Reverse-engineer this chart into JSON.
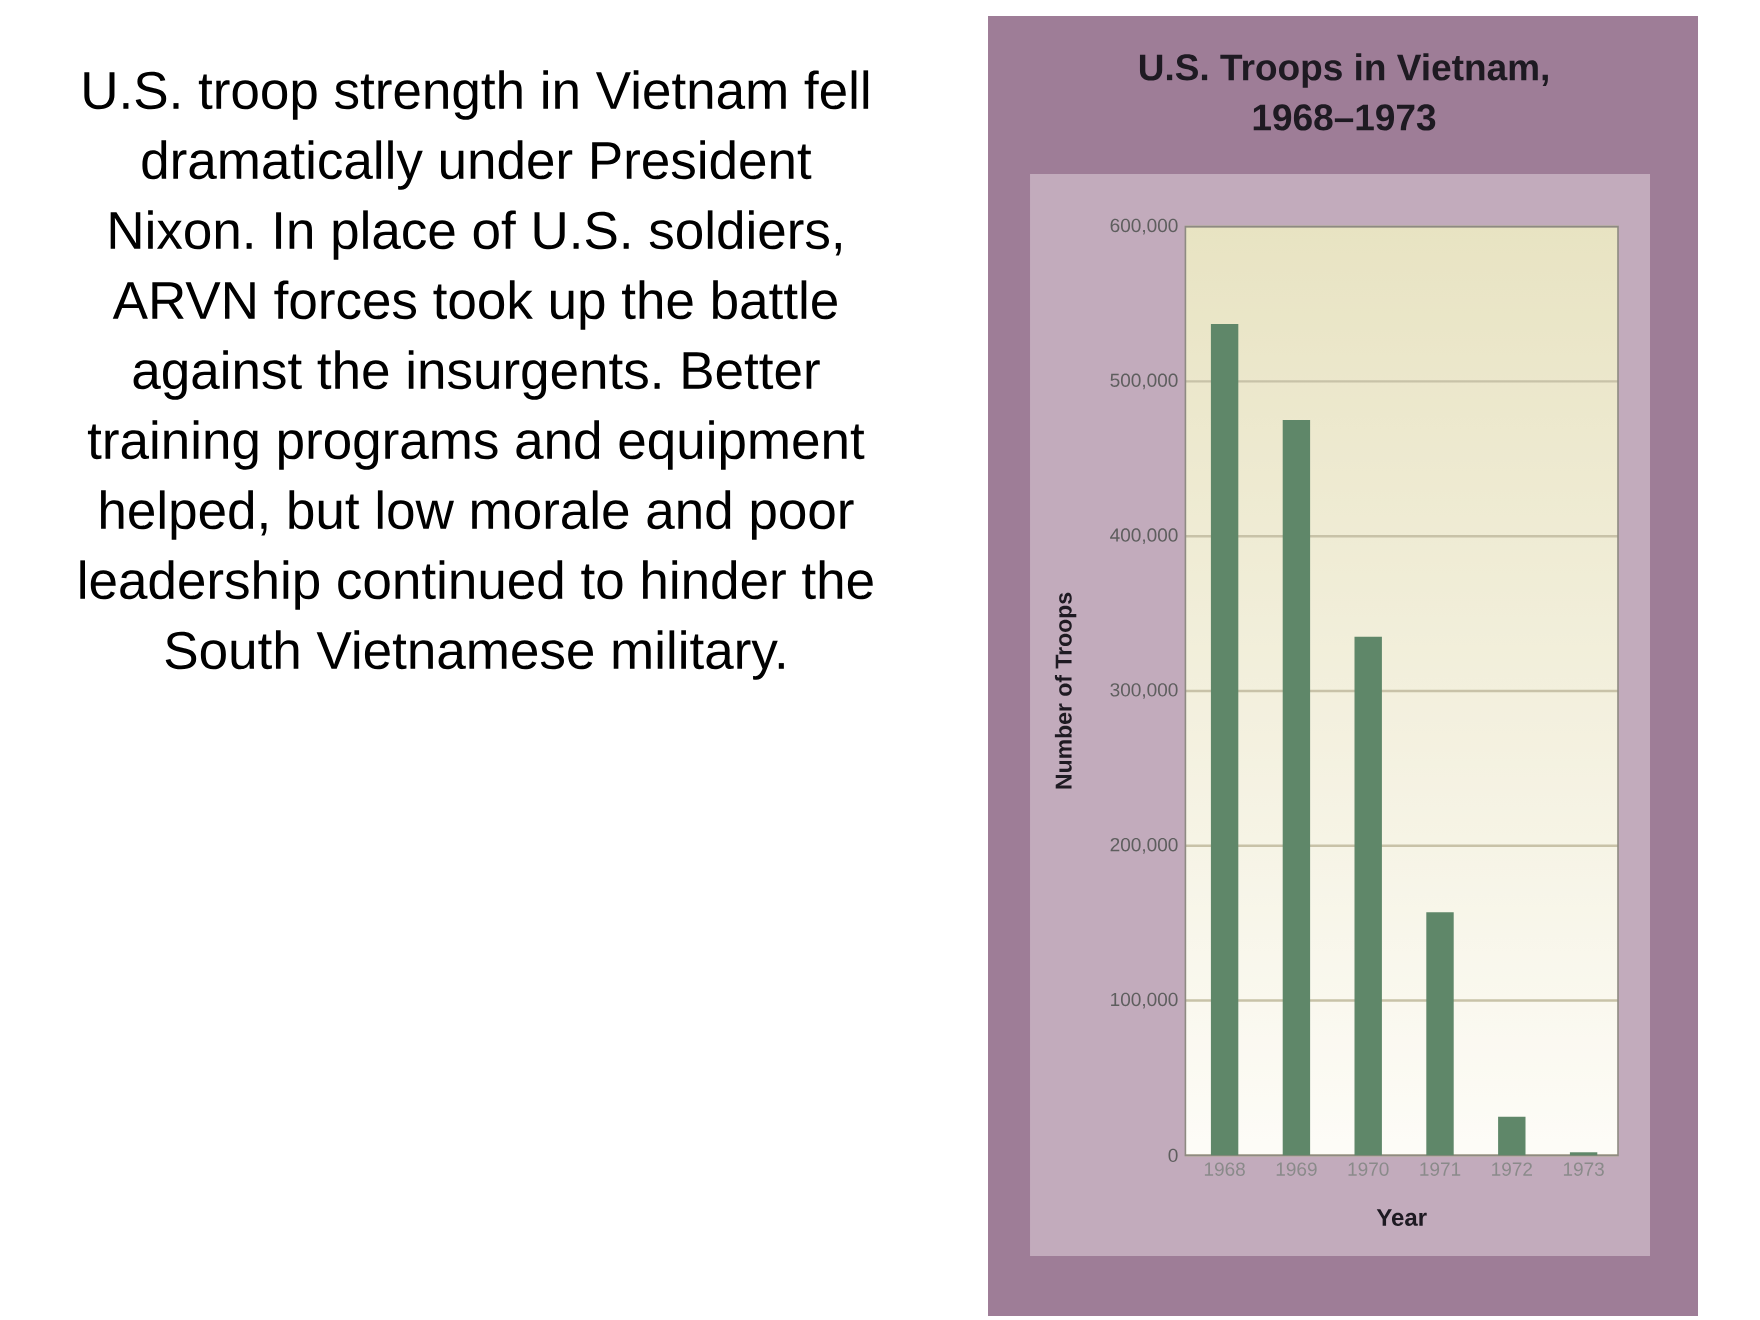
{
  "chart_data": {
    "type": "bar",
    "title": "U.S. Troops in Vietnam, 1968–1973",
    "xlabel": "Year",
    "ylabel": "Number of Troops",
    "categories": [
      "1968",
      "1969",
      "1970",
      "1971",
      "1972",
      "1973"
    ],
    "values": [
      537000,
      475000,
      335000,
      157000,
      25000,
      2000
    ],
    "color": "#5f8769",
    "ylim": [
      0,
      600000
    ],
    "yticks": [
      0,
      {
        "value": 100000,
        "label": "100,000"
      },
      {
        "value": 200000,
        "label": "200,000"
      },
      {
        "value": 300000,
        "label": "300,000"
      },
      {
        "value": 400000,
        "label": "400,000"
      },
      {
        "value": 500000,
        "label": "500,000"
      },
      {
        "value": 600000,
        "label": "600,000"
      }
    ],
    "grid": "y",
    "annotations": [
      "U.S. troop strength in Vietnam fell dramatically under President Nixon. In place of U.S. soldiers, ARVN forces took up the battle against the insurgents. Better training programs and equipment helped, but low morale and poor leadership continued to hinder the South Vietnamese military."
    ]
  }
}
